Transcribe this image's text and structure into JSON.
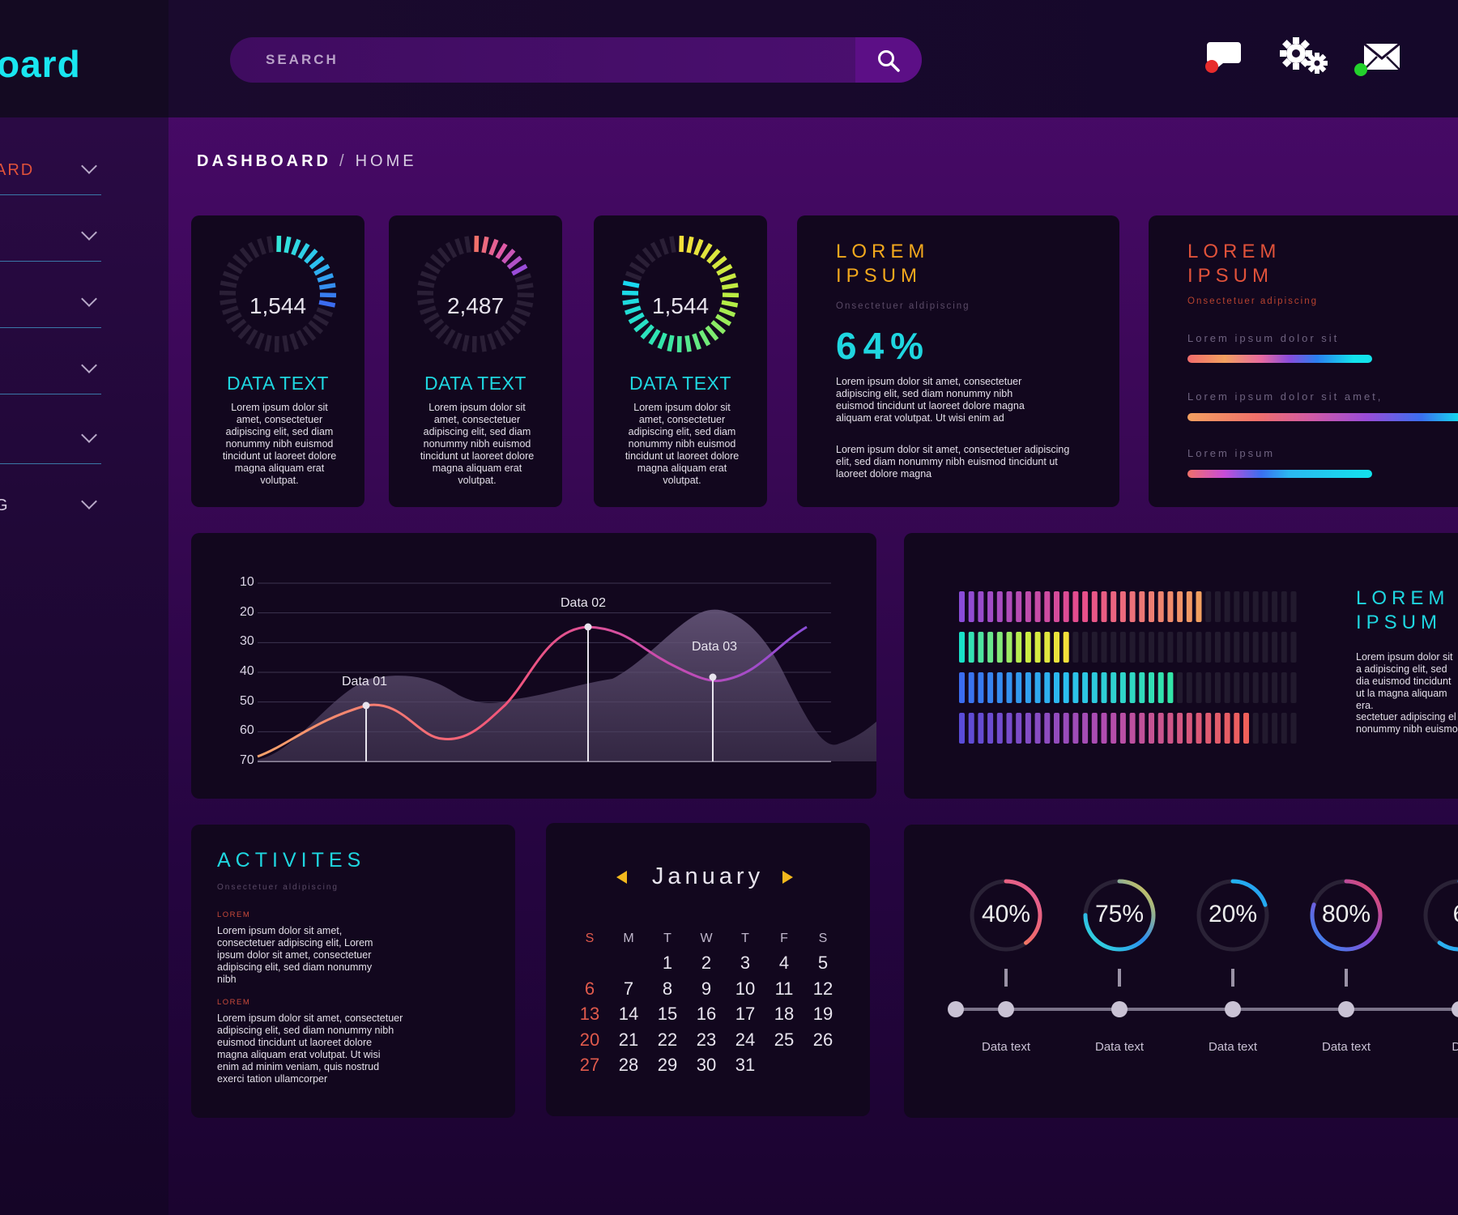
{
  "app": {
    "logo_text": "oard"
  },
  "search": {
    "placeholder": "SEARCH"
  },
  "sidebar": {
    "items": [
      {
        "label": "ARD"
      },
      {
        "label": ""
      },
      {
        "label": ""
      },
      {
        "label": ""
      },
      {
        "label": ""
      },
      {
        "label": "G"
      }
    ]
  },
  "breadcrumb": {
    "section": "DASHBOARD",
    "separator": "/",
    "page": "HOME"
  },
  "gauges": [
    {
      "value": "1,544",
      "title": "DATA TEXT",
      "text": "Lorem ipsum dolor sit amet, consectetuer adipiscing elit, sed diam nonummy nibh euismod tincidunt ut laoreet dolore magna aliquam erat volutpat.",
      "fill": 0.3
    },
    {
      "value": "2,487",
      "title": "DATA TEXT",
      "text": "Lorem ipsum dolor sit amet, consectetuer adipiscing elit, sed diam nonummy nibh euismod tincidunt ut laoreet dolore magna aliquam erat volutpat.",
      "fill": 0.2
    },
    {
      "value": "1,544",
      "title": "DATA TEXT",
      "text": "Lorem ipsum dolor sit amet, consectetuer adipiscing elit, sed diam nonummy nibh euismod tincidunt ut laoreet dolore magna aliquam erat volutpat.",
      "fill": 0.8
    }
  ],
  "stat_card": {
    "title_1": "LOREM",
    "title_2": "IPSUM",
    "subtitle": "Onsectetuer aldipiscing",
    "percent": "64%",
    "para_1": "Lorem ipsum dolor sit amet, consectetuer adipiscing elit, sed diam nonummy nibh euismod tincidunt ut laoreet dolore magna aliquam erat volutpat. Ut wisi enim ad",
    "para_2": "Lorem ipsum dolor sit amet, consectetuer adipiscing elit, sed diam nonummy nibh euismod tincidunt ut laoreet dolore magna"
  },
  "progress_card": {
    "title_1": "LOREM",
    "title_2": "IPSUM",
    "subtitle": "Onsectetuer adipiscing",
    "bars": [
      {
        "label": "Lorem ipsum dolor sit",
        "value": 0.85
      },
      {
        "label": "Lorem ipsum dolor sit amet,",
        "value": 1.0
      },
      {
        "label": "Lorem ipsum",
        "value": 0.85
      }
    ]
  },
  "chart_data": {
    "type": "line",
    "y_ticks": [
      "10",
      "20",
      "30",
      "40",
      "50",
      "60",
      "70"
    ],
    "annotations": [
      {
        "label": "Data 01"
      },
      {
        "label": "Data 02"
      },
      {
        "label": "Data 03"
      }
    ]
  },
  "equalizer_card": {
    "title_1": "LOREM",
    "title_2": "IPSUM",
    "para_1": "Lorem ipsum dolor sit a adipiscing elit, sed dia euismod tincidunt ut la magna aliquam era.",
    "para_2": "sectetuer adipiscing el nonummy nibh euismo",
    "rows": [
      {
        "filled": 26
      },
      {
        "filled": 12
      },
      {
        "filled": 23
      },
      {
        "filled": 31
      }
    ]
  },
  "activities": {
    "title": "ACTIVITES",
    "subtitle": "Onsectetuer aldipiscing",
    "items": [
      {
        "tag": "LOREM",
        "text": "Lorem ipsum dolor sit amet, consectetuer adipiscing elit, Lorem ipsum dolor sit amet, consectetuer adipiscing elit, sed diam nonummy nibh"
      },
      {
        "tag": "LOREM",
        "text": "Lorem ipsum dolor sit amet, consectetuer adipiscing elit, sed diam nonummy nibh euismod tincidunt ut laoreet dolore magna aliquam erat volutpat. Ut wisi enim ad minim veniam, quis nostrud exerci tation ullamcorper"
      }
    ]
  },
  "calendar": {
    "month": "January",
    "weekdays": [
      "S",
      "M",
      "T",
      "W",
      "T",
      "F",
      "S"
    ],
    "weeks": [
      [
        "",
        "",
        "1",
        "2",
        "3",
        "4",
        "5"
      ],
      [
        "6",
        "7",
        "8",
        "9",
        "10",
        "11",
        "12"
      ],
      [
        "13",
        "14",
        "15",
        "16",
        "17",
        "18",
        "19"
      ],
      [
        "20",
        "21",
        "22",
        "23",
        "24",
        "25",
        "26"
      ],
      [
        "27",
        "28",
        "29",
        "30",
        "31",
        "",
        ""
      ]
    ]
  },
  "rings": [
    {
      "value": "40%",
      "fraction": 0.4,
      "label": "Data text"
    },
    {
      "value": "75%",
      "fraction": 0.75,
      "label": "Data text"
    },
    {
      "value": "20%",
      "fraction": 0.2,
      "label": "Data text"
    },
    {
      "value": "80%",
      "fraction": 0.8,
      "label": "Data text"
    },
    {
      "value": "6",
      "fraction": 0.6,
      "label": "Da"
    }
  ],
  "colors": {
    "accent_cyan": "#1fd6e0",
    "accent_orange": "#f2a81d",
    "accent_red": "#e0523a",
    "card_bg": "#12071e"
  }
}
